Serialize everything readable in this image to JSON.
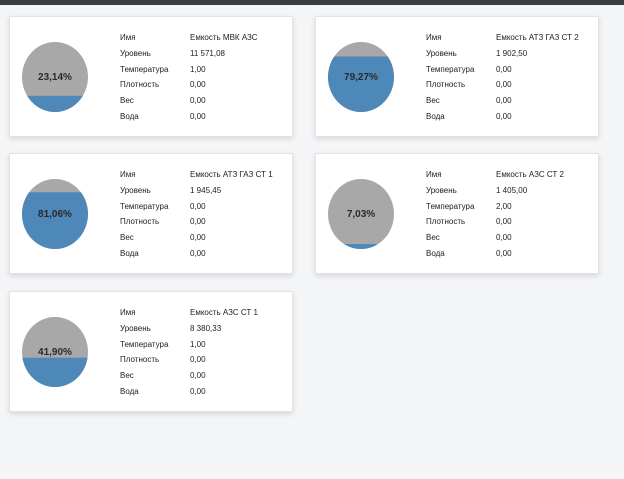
{
  "colors": {
    "fill": "#4e88b9",
    "empty": "#a8a8a8",
    "topbar": "#3a3d42"
  },
  "field_labels": {
    "name": "Имя",
    "level": "Уровень",
    "temperature": "Температура",
    "density": "Плотность",
    "weight": "Вес",
    "water": "Вода"
  },
  "tanks": [
    {
      "percent_text": "23,14%",
      "fill_fraction": 0.2314,
      "name": "Емкость МВК АЗС",
      "level": "11 571,08",
      "temperature": "1,00",
      "density": "0,00",
      "weight": "0,00",
      "water": "0,00"
    },
    {
      "percent_text": "79,27%",
      "fill_fraction": 0.7927,
      "name": "Емкость АТЗ ГАЗ СТ 2",
      "level": "1 902,50",
      "temperature": "0,00",
      "density": "0,00",
      "weight": "0,00",
      "water": "0,00"
    },
    {
      "percent_text": "81,06%",
      "fill_fraction": 0.8106,
      "name": "Емкость АТЗ ГАЗ СТ 1",
      "level": "1 945,45",
      "temperature": "0,00",
      "density": "0,00",
      "weight": "0,00",
      "water": "0,00"
    },
    {
      "percent_text": "7,03%",
      "fill_fraction": 0.0703,
      "name": "Емкость АЗС СТ 2",
      "level": "1 405,00",
      "temperature": "2,00",
      "density": "0,00",
      "weight": "0,00",
      "water": "0,00"
    },
    {
      "percent_text": "41,90%",
      "fill_fraction": 0.419,
      "name": "Емкость АЗС СТ 1",
      "level": "8 380,33",
      "temperature": "1,00",
      "density": "0,00",
      "weight": "0,00",
      "water": "0,00"
    }
  ]
}
